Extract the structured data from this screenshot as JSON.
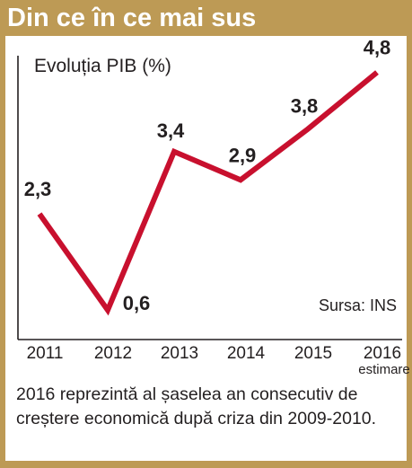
{
  "header": {
    "title": "Din ce în ce mai sus"
  },
  "chart_data": {
    "type": "line",
    "title": "Evoluția PIB (%)",
    "source": "Sursa: INS",
    "x": [
      "2011",
      "2012",
      "2013",
      "2014",
      "2015",
      "2016"
    ],
    "x_sublabels": [
      "",
      "",
      "",
      "",
      "",
      "estimare"
    ],
    "values": [
      2.3,
      0.6,
      3.4,
      2.9,
      3.8,
      4.8
    ],
    "value_labels": [
      "2,3",
      "0,6",
      "3,4",
      "2,9",
      "3,8",
      "4,8"
    ],
    "ylim": [
      0,
      5
    ],
    "grid": false,
    "line_color": "#c8102e"
  },
  "footnote": "2016 reprezintă al șaselea an consecutiv de creștere economică după criza din 2009-2010."
}
